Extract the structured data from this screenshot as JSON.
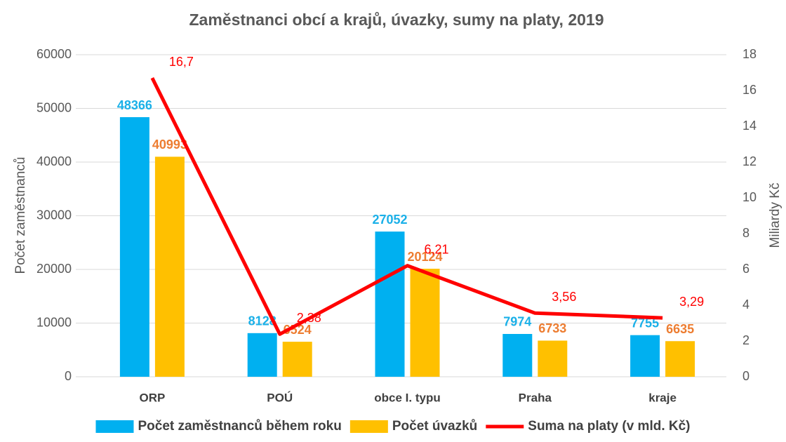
{
  "chart_data": {
    "type": "bar",
    "title": "Zaměstnanci obcí a krajů, úvazky, sumy na platy, 2019",
    "categories": [
      "ORP",
      "POÚ",
      "obce I. typu",
      "Praha",
      "kraje"
    ],
    "series": [
      {
        "name": "Počet zaměstnanců během roku",
        "color": "#00b0f0",
        "values": [
          48366,
          8128,
          27052,
          7974,
          7755
        ]
      },
      {
        "name": "Počet úvazků",
        "color": "#ffc000",
        "values": [
          40993,
          6524,
          20124,
          6733,
          6635
        ]
      },
      {
        "name": "Suma na platy (v mld. Kč)",
        "color": "#ff0000",
        "type": "line",
        "axis": "y2",
        "values": [
          16.7,
          2.38,
          6.21,
          3.56,
          3.29
        ],
        "value_labels": [
          "16,7",
          "2,38",
          "6,21",
          "3,56",
          "3,29"
        ]
      }
    ],
    "ylabel": "Počet zaměstnanců",
    "y2label": "Miliardy Kč",
    "ylim": [
      0,
      60000
    ],
    "yticks": [
      0,
      10000,
      20000,
      30000,
      40000,
      50000,
      60000
    ],
    "y2lim": [
      0,
      18
    ],
    "y2ticks": [
      0,
      2,
      4,
      6,
      8,
      10,
      12,
      14,
      16,
      18
    ],
    "grid": true,
    "legend": "bottom"
  }
}
